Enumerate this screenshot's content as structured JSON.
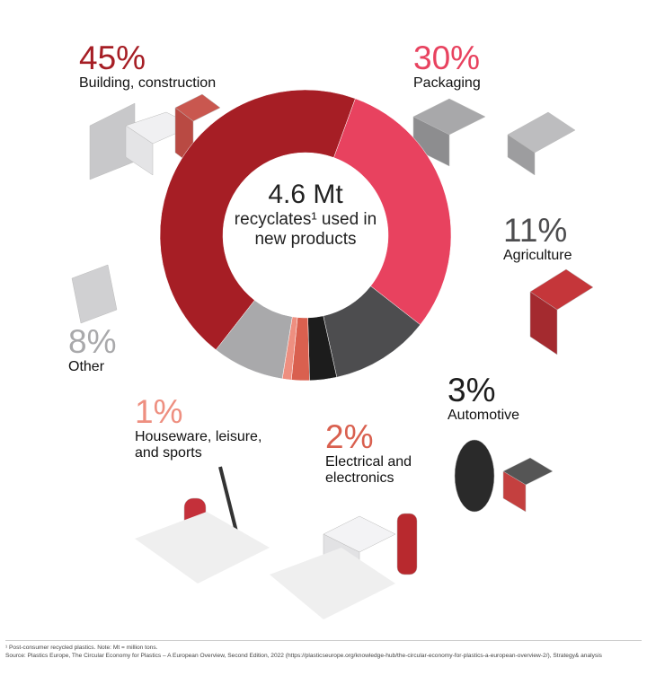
{
  "chart_data": {
    "type": "donut",
    "center_title": "4.6 Mt",
    "center_text": "recyclates¹ used in new products",
    "categories": [
      "Building, construction",
      "Packaging",
      "Agriculture",
      "Automotive",
      "Electrical and electronics",
      "Houseware, leisure, and sports",
      "Other"
    ],
    "values": [
      45,
      30,
      11,
      3,
      2,
      1,
      8
    ],
    "value_labels": [
      "45%",
      "30%",
      "11%",
      "3%",
      "2%",
      "1%",
      "8%"
    ],
    "colors": [
      "#a61e25",
      "#e8425f",
      "#4d4d4f",
      "#1c1c1c",
      "#d9604f",
      "#ee8f80",
      "#a9a9ab"
    ],
    "footnotes": [
      "¹ Post-consumer recycled plastics. Note: Mt = million tons.",
      "Source: Plastics Europe, The Circular Economy for Plastics – A European Overview, Second Edition, 2022 (https://plasticseurope.org/knowledge-hub/the-circular-economy-for-plastics-a-european-overview-2/), Strategy& analysis"
    ]
  }
}
